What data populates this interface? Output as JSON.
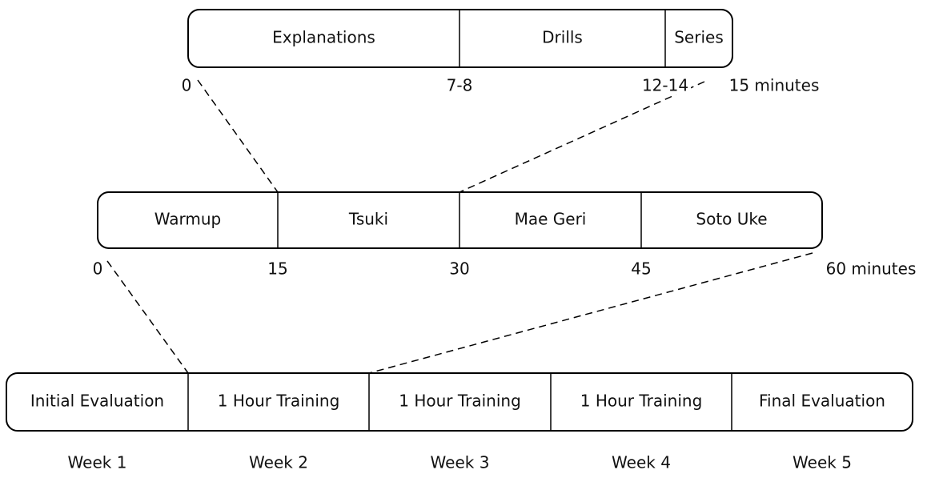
{
  "timelines": [
    {
      "segments": [
        "Explanations",
        "Drills",
        "Series"
      ],
      "ticks": [
        "0",
        "7-8",
        "12-14",
        "15 minutes"
      ]
    },
    {
      "segments": [
        "Warmup",
        "Tsuki",
        "Mae Geri",
        "Soto Uke"
      ],
      "ticks": [
        "0",
        "15",
        "30",
        "45",
        "60 minutes"
      ]
    },
    {
      "segments": [
        "Initial Evaluation",
        "1 Hour Training",
        "1 Hour Training",
        "1 Hour Training",
        "Final Evaluation"
      ]
    }
  ],
  "weeks": [
    "Week 1",
    "Week 2",
    "Week 3",
    "Week 4",
    "Week 5"
  ]
}
